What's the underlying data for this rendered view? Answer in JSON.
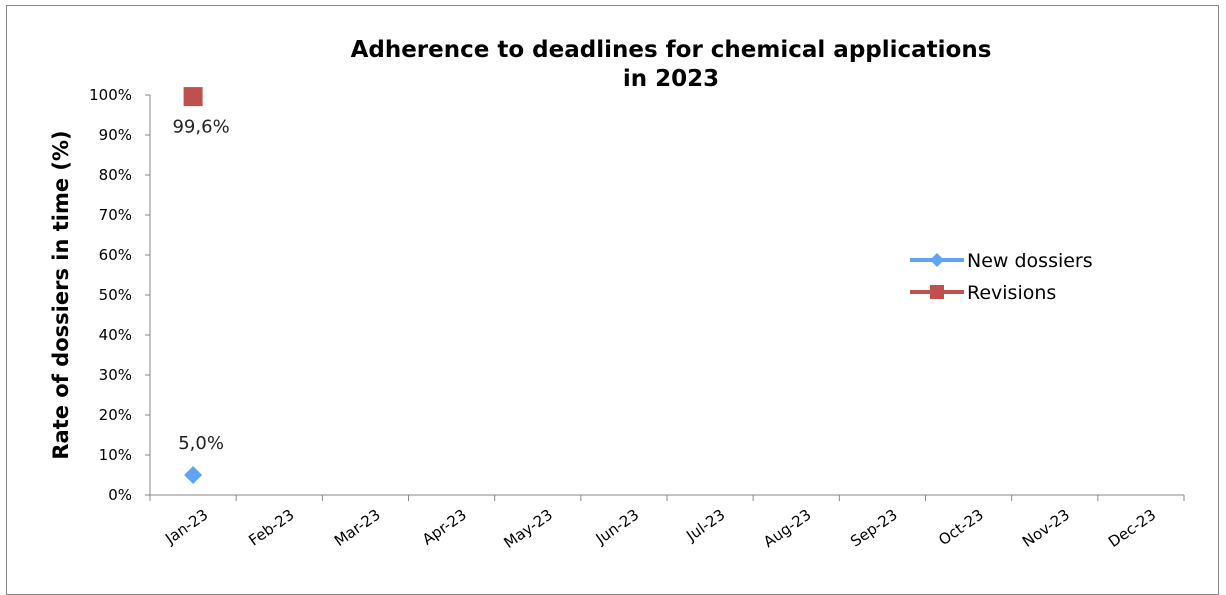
{
  "chart_data": {
    "type": "line",
    "title_lines": [
      "Adherence to deadlines for chemical applications",
      "in 2023"
    ],
    "xlabel": "",
    "ylabel": "Rate of dossiers in time (%)",
    "categories": [
      "Jan-23",
      "Feb-23",
      "Mar-23",
      "Apr-23",
      "May-23",
      "Jun-23",
      "Jul-23",
      "Aug-23",
      "Sep-23",
      "Oct-23",
      "Nov-23",
      "Dec-23"
    ],
    "y_ticks": [
      "0%",
      "10%",
      "20%",
      "30%",
      "40%",
      "50%",
      "60%",
      "70%",
      "80%",
      "90%",
      "100%"
    ],
    "ylim": [
      0,
      100
    ],
    "grid": false,
    "legend_position": "right",
    "series": [
      {
        "name": "New dossiers",
        "color": "#5fa4f5",
        "marker": "diamond",
        "values": [
          5.0,
          null,
          null,
          null,
          null,
          null,
          null,
          null,
          null,
          null,
          null,
          null
        ],
        "data_labels": [
          "5,0%",
          null,
          null,
          null,
          null,
          null,
          null,
          null,
          null,
          null,
          null,
          null
        ]
      },
      {
        "name": "Revisions",
        "color": "#c0504d",
        "marker": "square",
        "values": [
          99.6,
          null,
          null,
          null,
          null,
          null,
          null,
          null,
          null,
          null,
          null,
          null
        ],
        "data_labels": [
          "99,6%",
          null,
          null,
          null,
          null,
          null,
          null,
          null,
          null,
          null,
          null,
          null
        ]
      }
    ]
  }
}
